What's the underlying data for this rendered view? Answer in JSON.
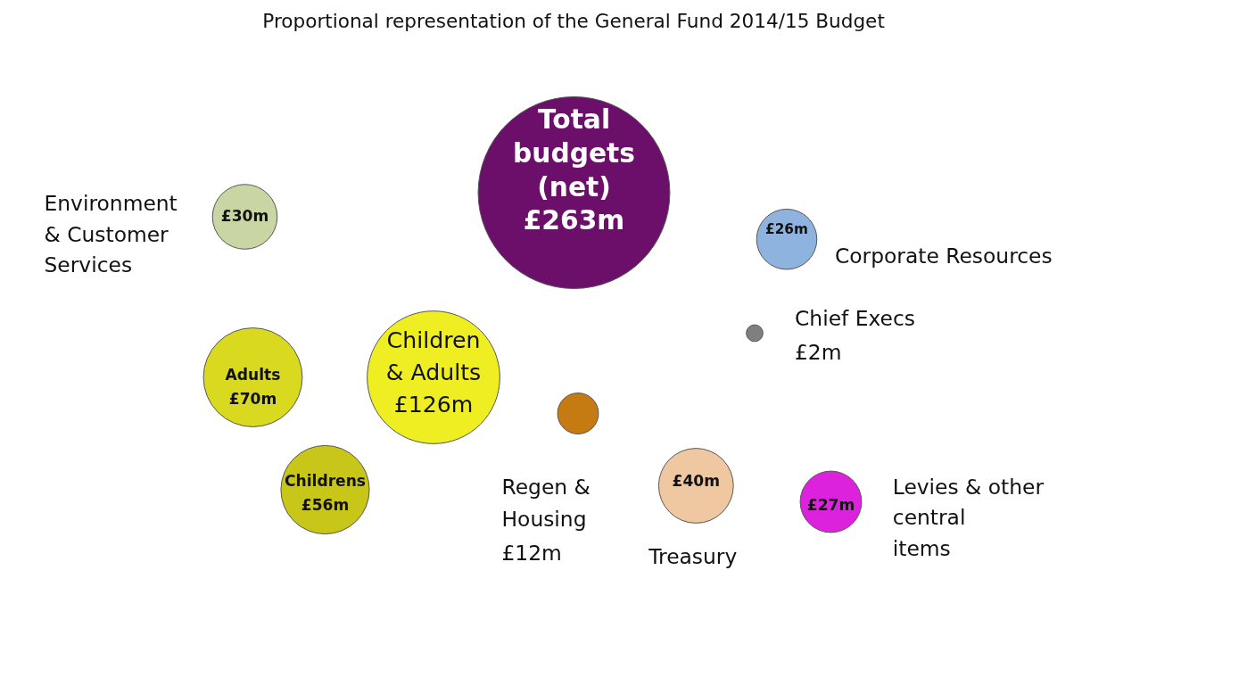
{
  "chart_data": {
    "type": "other",
    "title": "Proportional representation of the General Fund 2014/15 Budget",
    "categories": [
      "Total budgets (net)",
      "Environment & Customer Services",
      "Corporate Resources",
      "Chief Execs",
      "Children & Adults",
      "Adults",
      "Childrens",
      "Regen & Housing",
      "Treasury",
      "Levies & other central items"
    ],
    "values": [
      263,
      30,
      26,
      2,
      126,
      70,
      56,
      12,
      40,
      27
    ],
    "value_labels": [
      "£263m",
      "£30m",
      "£26m",
      "£2m",
      "£126m",
      "£70m",
      "£56m",
      "£12m",
      "£40m",
      "£27m"
    ],
    "colors": [
      "#6b0f6b",
      "#c9d6a3",
      "#8fb3df",
      "#7f7f7f",
      "#eeee22",
      "#d9d91f",
      "#c9c61a",
      "#c57a12",
      "#efc7a0",
      "#dd22dd"
    ]
  }
}
